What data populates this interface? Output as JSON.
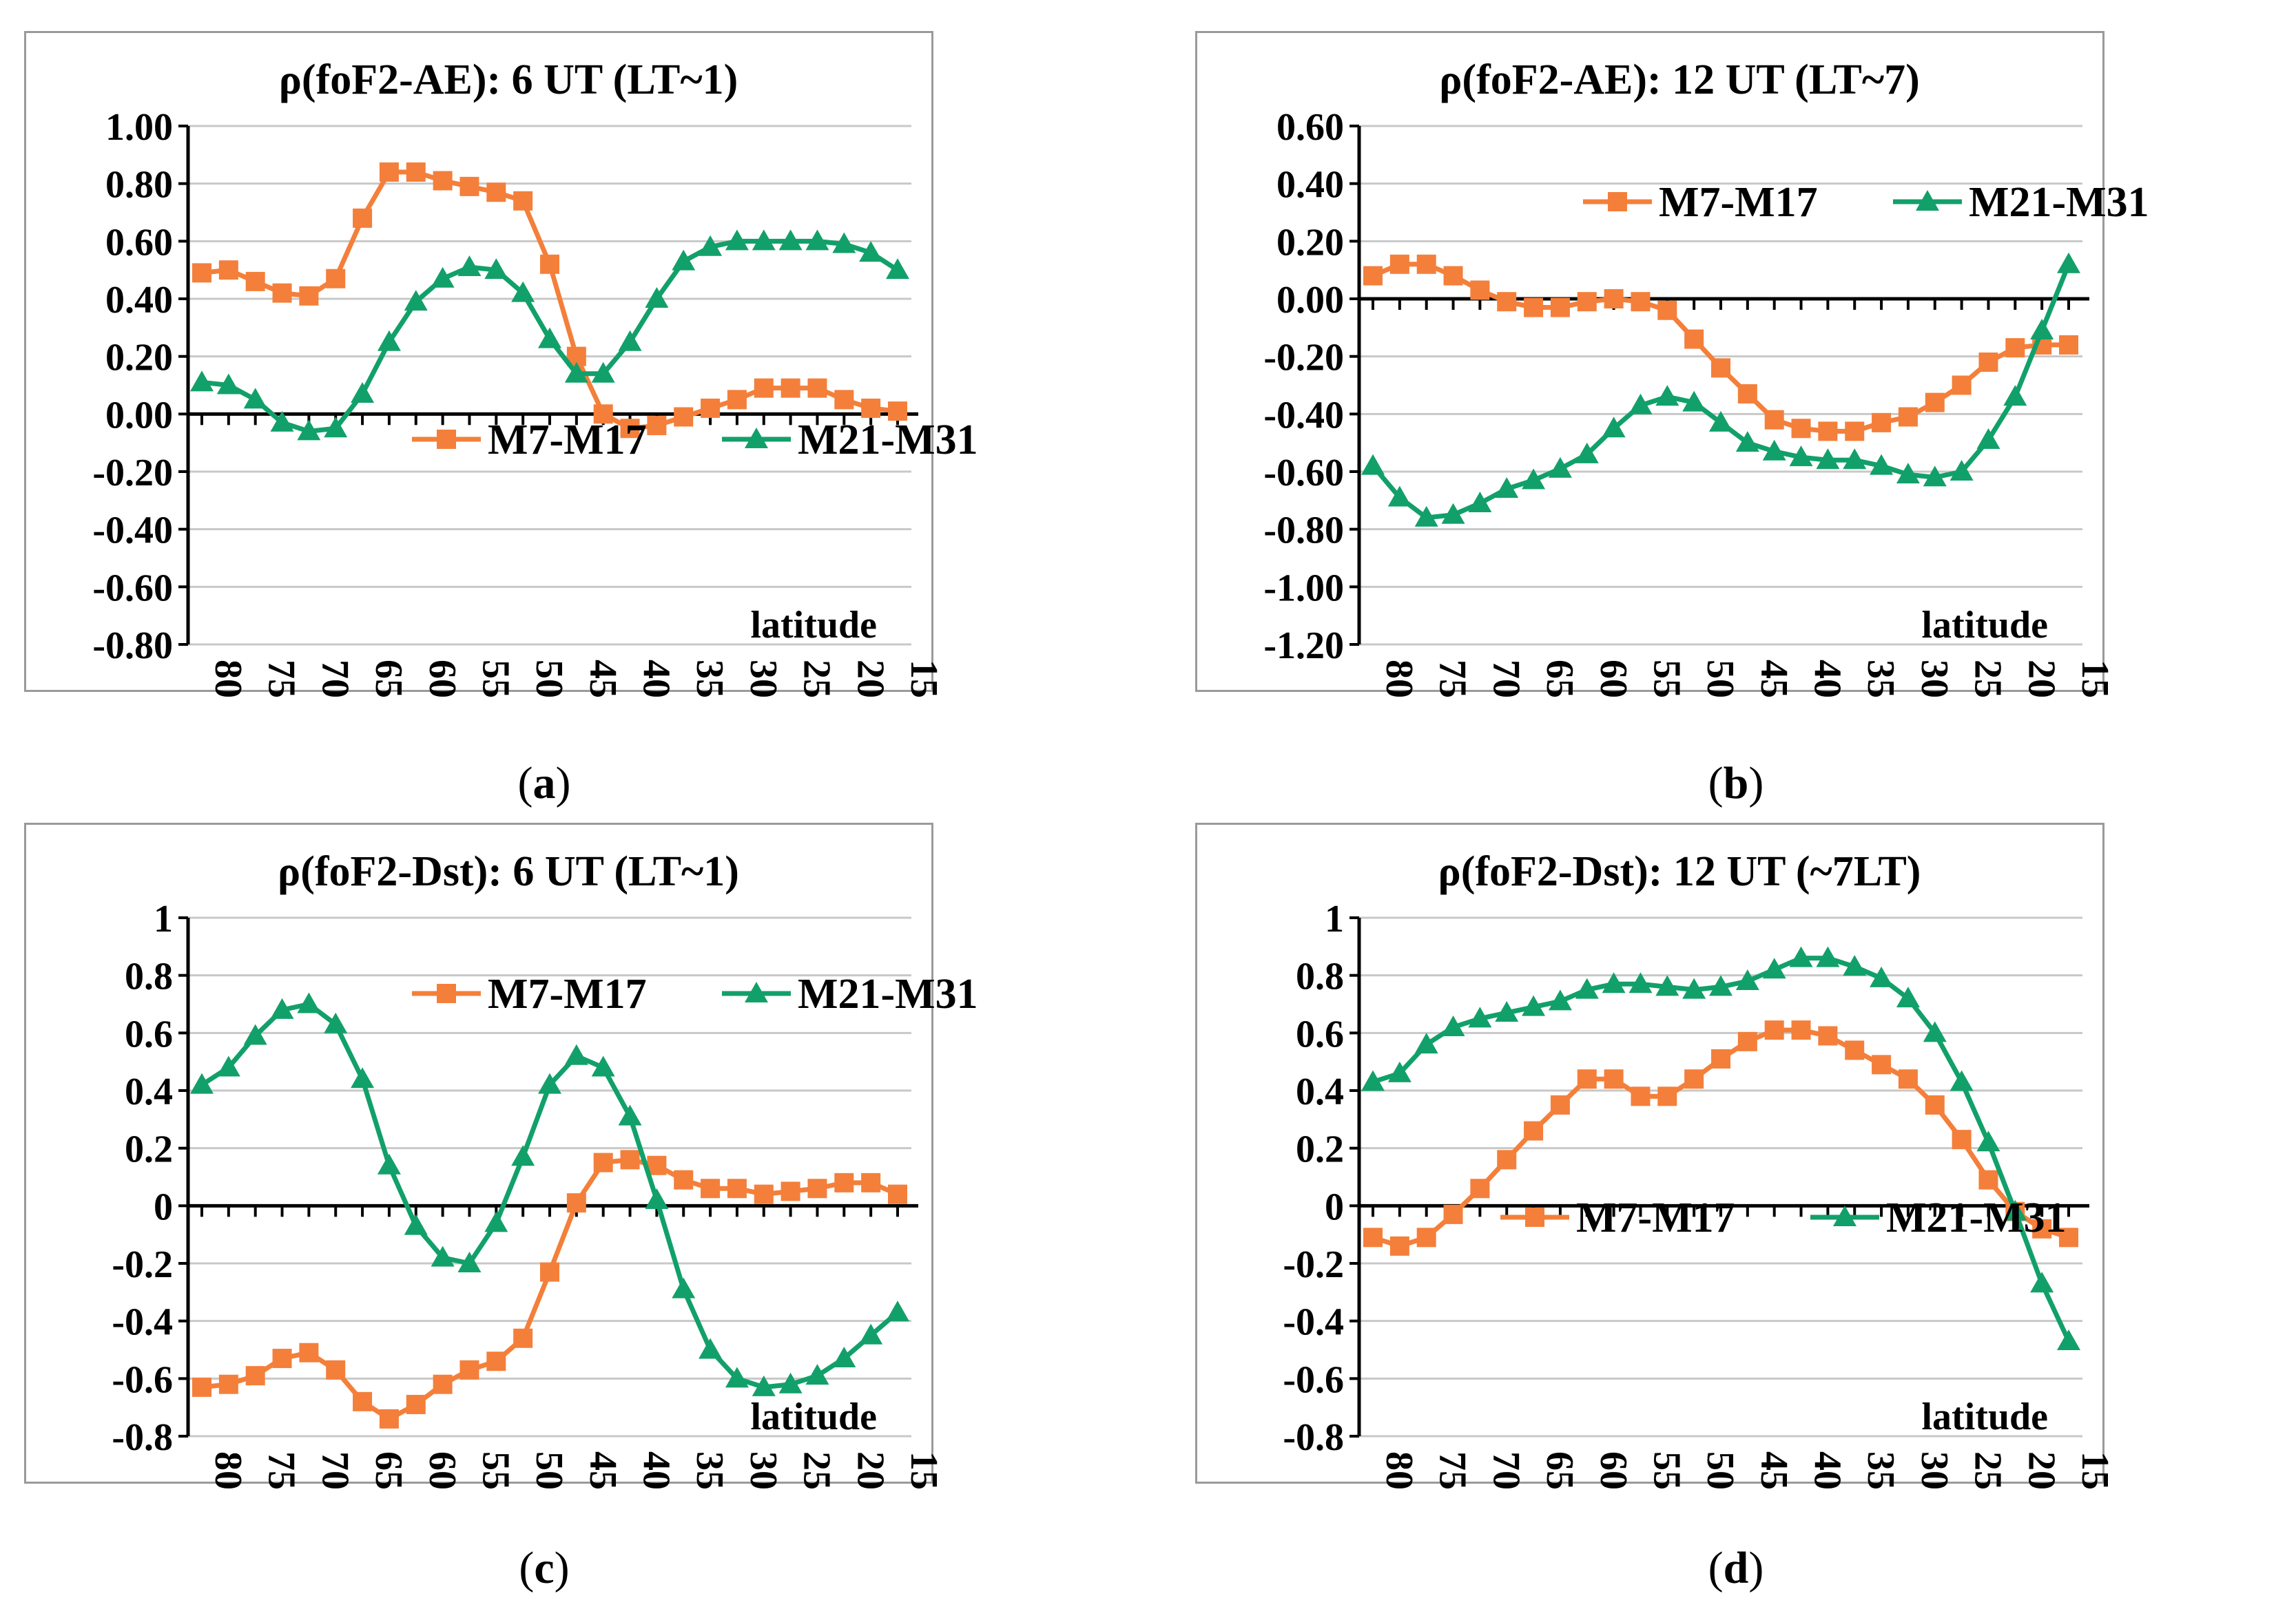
{
  "colors": {
    "m7": "#f47f3a",
    "m21": "#12a06a",
    "axis": "#000000",
    "grid": "#c8c8c8",
    "border": "#9a9a9a"
  },
  "x_ticks": [
    "80",
    "75",
    "70",
    "65",
    "60",
    "55",
    "50",
    "45",
    "40",
    "35",
    "30",
    "25",
    "20",
    "15"
  ],
  "captions": {
    "a": "a",
    "b": "b",
    "c": "c",
    "d": "d"
  },
  "chart_data": [
    {
      "id": "a",
      "type": "line",
      "title": "ρ(foF2-AE): 6 UT (LT~1)",
      "xlabel": "latitude",
      "ylabel": "",
      "ylim": [
        -0.8,
        1.0
      ],
      "ystep": 0.2,
      "ytick_labels": [
        "1.00",
        "0.80",
        "0.60",
        "0.40",
        "0.20",
        "0.00",
        "-0.20",
        "-0.40",
        "-0.60",
        "-0.80"
      ],
      "legend_position": "middle-right",
      "x": [
        80,
        77.5,
        75,
        72.5,
        70,
        67.5,
        65,
        62.5,
        60,
        57.5,
        55,
        52.5,
        50,
        47.5,
        45,
        42.5,
        40,
        37.5,
        35,
        32.5,
        30,
        27.5,
        25,
        22.5,
        20,
        17.5,
        15
      ],
      "series": [
        {
          "name": "M7-M17",
          "marker": "square",
          "values": [
            0.49,
            0.5,
            0.46,
            0.42,
            0.41,
            0.47,
            0.68,
            0.84,
            0.84,
            0.81,
            0.79,
            0.77,
            0.74,
            0.52,
            0.2,
            0.0,
            -0.05,
            -0.04,
            -0.01,
            0.02,
            0.05,
            0.09,
            0.09,
            0.09,
            0.05,
            0.02,
            0.01
          ]
        },
        {
          "name": "M21-M31",
          "marker": "triangle",
          "values": [
            0.11,
            0.1,
            0.05,
            -0.03,
            -0.06,
            -0.05,
            0.07,
            0.25,
            0.39,
            0.47,
            0.51,
            0.5,
            0.42,
            0.26,
            0.14,
            0.14,
            0.25,
            0.4,
            0.53,
            0.58,
            0.6,
            0.6,
            0.6,
            0.6,
            0.59,
            0.56,
            0.5
          ]
        }
      ]
    },
    {
      "id": "b",
      "type": "line",
      "title": "ρ(foF2-AE): 12 UT (LT~7)",
      "xlabel": "latitude",
      "ylabel": "",
      "ylim": [
        -1.2,
        0.6
      ],
      "ystep": 0.2,
      "ytick_labels": [
        "0.60",
        "0.40",
        "0.20",
        "0.00",
        "-0.20",
        "-0.40",
        "-0.60",
        "-0.80",
        "-1.00",
        "-1.20"
      ],
      "legend_position": "top-right",
      "x": [
        80,
        77.5,
        75,
        72.5,
        70,
        67.5,
        65,
        62.5,
        60,
        57.5,
        55,
        52.5,
        50,
        47.5,
        45,
        42.5,
        40,
        37.5,
        35,
        32.5,
        30,
        27.5,
        25,
        22.5,
        20,
        17.5,
        15
      ],
      "series": [
        {
          "name": "M7-M17",
          "marker": "square",
          "values": [
            0.08,
            0.12,
            0.12,
            0.08,
            0.03,
            -0.01,
            -0.03,
            -0.03,
            -0.01,
            0.0,
            -0.01,
            -0.04,
            -0.14,
            -0.24,
            -0.33,
            -0.42,
            -0.45,
            -0.46,
            -0.46,
            -0.43,
            -0.41,
            -0.36,
            -0.3,
            -0.22,
            -0.17,
            -0.16,
            -0.16
          ]
        },
        {
          "name": "M21-M31",
          "marker": "triangle",
          "values": [
            -0.58,
            -0.69,
            -0.76,
            -0.75,
            -0.71,
            -0.66,
            -0.63,
            -0.59,
            -0.54,
            -0.45,
            -0.37,
            -0.34,
            -0.36,
            -0.43,
            -0.5,
            -0.53,
            -0.55,
            -0.56,
            -0.56,
            -0.58,
            -0.61,
            -0.62,
            -0.6,
            -0.49,
            -0.34,
            -0.11,
            0.12
          ]
        }
      ]
    },
    {
      "id": "c",
      "type": "line",
      "title": "ρ(foF2-Dst): 6 UT (LT~1)",
      "xlabel": "latitude",
      "ylabel": "",
      "ylim": [
        -0.8,
        1.0
      ],
      "ystep": 0.2,
      "ytick_labels": [
        "1",
        "0.8",
        "0.6",
        "0.4",
        "0.2",
        "0",
        "-0.2",
        "-0.4",
        "-0.6",
        "-0.8"
      ],
      "legend_position": "top-right",
      "x": [
        80,
        77.5,
        75,
        72.5,
        70,
        67.5,
        65,
        62.5,
        60,
        57.5,
        55,
        52.5,
        50,
        47.5,
        45,
        42.5,
        40,
        37.5,
        35,
        32.5,
        30,
        27.5,
        25,
        22.5,
        20,
        17.5,
        15
      ],
      "series": [
        {
          "name": "M7-M17",
          "marker": "square",
          "values": [
            -0.63,
            -0.62,
            -0.59,
            -0.53,
            -0.51,
            -0.57,
            -0.68,
            -0.74,
            -0.69,
            -0.62,
            -0.57,
            -0.54,
            -0.46,
            -0.23,
            0.01,
            0.15,
            0.16,
            0.14,
            0.09,
            0.06,
            0.06,
            0.04,
            0.05,
            0.06,
            0.08,
            0.08,
            0.04
          ]
        },
        {
          "name": "M21-M31",
          "marker": "triangle",
          "values": [
            0.42,
            0.48,
            0.59,
            0.68,
            0.7,
            0.63,
            0.44,
            0.14,
            -0.07,
            -0.18,
            -0.2,
            -0.06,
            0.17,
            0.42,
            0.52,
            0.48,
            0.31,
            0.02,
            -0.29,
            -0.5,
            -0.6,
            -0.63,
            -0.62,
            -0.59,
            -0.53,
            -0.45,
            -0.37
          ]
        }
      ]
    },
    {
      "id": "d",
      "type": "line",
      "title": "ρ(foF2-Dst): 12 UT (~7LT)",
      "xlabel": "latitude",
      "ylabel": "",
      "ylim": [
        -0.8,
        1.0
      ],
      "ystep": 0.2,
      "ytick_labels": [
        "1",
        "0.8",
        "0.6",
        "0.4",
        "0.2",
        "0",
        "-0.2",
        "-0.4",
        "-0.6",
        "-0.8"
      ],
      "legend_position": "bottom-center",
      "x": [
        80,
        77.5,
        75,
        72.5,
        70,
        67.5,
        65,
        62.5,
        60,
        57.5,
        55,
        52.5,
        50,
        47.5,
        45,
        42.5,
        40,
        37.5,
        35,
        32.5,
        30,
        27.5,
        25,
        22.5,
        20,
        17.5,
        15
      ],
      "series": [
        {
          "name": "M7-M17",
          "marker": "square",
          "values": [
            -0.11,
            -0.14,
            -0.11,
            -0.03,
            0.06,
            0.16,
            0.26,
            0.35,
            0.44,
            0.44,
            0.38,
            0.38,
            0.44,
            0.51,
            0.57,
            0.61,
            0.61,
            0.59,
            0.54,
            0.49,
            0.44,
            0.35,
            0.23,
            0.09,
            -0.02,
            -0.08,
            -0.11
          ]
        },
        {
          "name": "M21-M31",
          "marker": "triangle",
          "values": [
            0.43,
            0.46,
            0.56,
            0.62,
            0.65,
            0.67,
            0.69,
            0.71,
            0.75,
            0.77,
            0.77,
            0.76,
            0.75,
            0.76,
            0.78,
            0.82,
            0.86,
            0.86,
            0.83,
            0.79,
            0.72,
            0.6,
            0.43,
            0.22,
            -0.02,
            -0.27,
            -0.47
          ]
        }
      ]
    }
  ]
}
